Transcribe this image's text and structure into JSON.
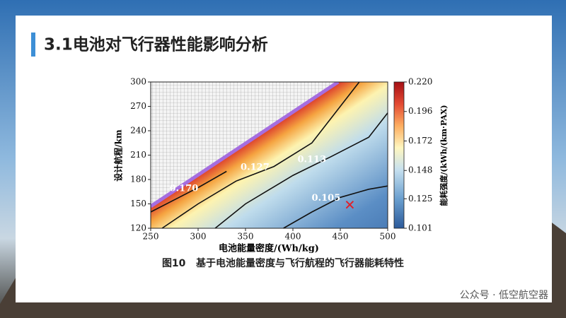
{
  "title": "3.1电池对飞行器性能影响分析",
  "chart_data": {
    "type": "contour",
    "xlabel": "电池能量密度/(Wh/kg)",
    "ylabel": "设计航程/km",
    "colorbar_label": "能耗强度/(kWh/(km·PAX)",
    "caption": "图10   基于电池能量密度与飞行航程的飞行器能耗特性",
    "xlim": [
      250,
      500
    ],
    "xticks": [
      250,
      300,
      350,
      400,
      450,
      500
    ],
    "ylim": [
      120,
      300
    ],
    "yticks": [
      120,
      150,
      180,
      210,
      240,
      270,
      300
    ],
    "clim": [
      0.101,
      0.22
    ],
    "cticks": [
      {
        "value": 0.22,
        "label": "0.220"
      },
      {
        "value": 0.196,
        "label": "0.196"
      },
      {
        "value": 0.172,
        "label": "0.172"
      },
      {
        "value": 0.148,
        "label": "0.148"
      },
      {
        "value": 0.125,
        "label": "0.125"
      },
      {
        "value": 0.101,
        "label": "0.101"
      }
    ],
    "contours": [
      {
        "level": {
          "value": 0.17,
          "label": "0.170"
        },
        "x": [
          250,
          270,
          300,
          330
        ],
        "y": [
          140,
          152,
          170,
          190
        ]
      },
      {
        "level": 0.127,
        "x": [
          262,
          300,
          340,
          380,
          420,
          470
        ],
        "y": [
          120,
          150,
          178,
          196,
          225,
          300
        ]
      },
      {
        "level": 0.113,
        "x": [
          318,
          350,
          400,
          440,
          480,
          500
        ],
        "y": [
          120,
          150,
          185,
          208,
          232,
          262
        ]
      },
      {
        "level": 0.105,
        "x": [
          390,
          420,
          450,
          480,
          500
        ],
        "y": [
          120,
          140,
          158,
          168,
          172
        ]
      }
    ],
    "marker": {
      "x": 460,
      "y": 149,
      "color": "#e0202a"
    }
  },
  "watermark": "公众号 · 低空航空器"
}
